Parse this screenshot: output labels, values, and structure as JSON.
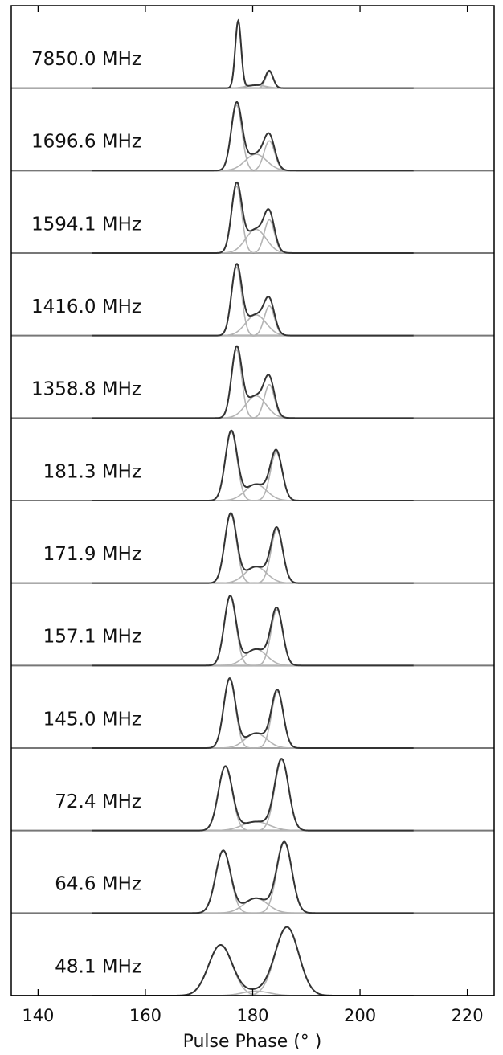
{
  "chart_data": {
    "type": "line",
    "title": "",
    "xlabel": "Pulse Phase (° )",
    "ylabel": "",
    "xlim": [
      135,
      225
    ],
    "xticks": [
      140,
      160,
      180,
      200,
      220
    ],
    "xtick_labels": [
      "140",
      "160",
      "180",
      "200",
      "220"
    ],
    "colors": {
      "total": "#333333",
      "component": "#b4b4b4",
      "frame": "#000000"
    },
    "panels": [
      {
        "label": "7850.0 MHz",
        "components": [
          {
            "center": 177.3,
            "amp": 0.9,
            "sigma": 0.55
          },
          {
            "center": 180.6,
            "amp": 0.04,
            "sigma": 1.8
          },
          {
            "center": 183.1,
            "amp": 0.22,
            "sigma": 0.7
          }
        ]
      },
      {
        "label": "1696.6 MHz",
        "components": [
          {
            "center": 177.0,
            "amp": 0.88,
            "sigma": 1.0
          },
          {
            "center": 180.6,
            "amp": 0.22,
            "sigma": 2.0
          },
          {
            "center": 183.1,
            "amp": 0.4,
            "sigma": 1.0
          }
        ]
      },
      {
        "label": "1594.1 MHz",
        "components": [
          {
            "center": 177.0,
            "amp": 0.9,
            "sigma": 0.95
          },
          {
            "center": 180.6,
            "amp": 0.32,
            "sigma": 1.9
          },
          {
            "center": 183.1,
            "amp": 0.45,
            "sigma": 0.95
          }
        ]
      },
      {
        "label": "1416.0 MHz",
        "components": [
          {
            "center": 177.0,
            "amp": 0.92,
            "sigma": 0.95
          },
          {
            "center": 180.6,
            "amp": 0.28,
            "sigma": 1.9
          },
          {
            "center": 183.1,
            "amp": 0.4,
            "sigma": 0.95
          }
        ]
      },
      {
        "label": "1358.8 MHz",
        "components": [
          {
            "center": 177.0,
            "amp": 0.92,
            "sigma": 0.95
          },
          {
            "center": 180.6,
            "amp": 0.3,
            "sigma": 1.9
          },
          {
            "center": 183.1,
            "amp": 0.45,
            "sigma": 0.95
          }
        ]
      },
      {
        "label": "181.3 MHz",
        "components": [
          {
            "center": 176.0,
            "amp": 0.93,
            "sigma": 1.1
          },
          {
            "center": 180.6,
            "amp": 0.22,
            "sigma": 2.0
          },
          {
            "center": 184.4,
            "amp": 0.65,
            "sigma": 1.1
          }
        ]
      },
      {
        "label": "171.9 MHz",
        "components": [
          {
            "center": 175.9,
            "amp": 0.93,
            "sigma": 1.1
          },
          {
            "center": 180.6,
            "amp": 0.22,
            "sigma": 2.0
          },
          {
            "center": 184.5,
            "amp": 0.72,
            "sigma": 1.1
          }
        ]
      },
      {
        "label": "157.1 MHz",
        "components": [
          {
            "center": 175.8,
            "amp": 0.93,
            "sigma": 1.1
          },
          {
            "center": 180.6,
            "amp": 0.22,
            "sigma": 2.0
          },
          {
            "center": 184.5,
            "amp": 0.75,
            "sigma": 1.1
          }
        ]
      },
      {
        "label": "145.0 MHz",
        "components": [
          {
            "center": 175.7,
            "amp": 0.93,
            "sigma": 1.1
          },
          {
            "center": 180.6,
            "amp": 0.2,
            "sigma": 2.0
          },
          {
            "center": 184.6,
            "amp": 0.76,
            "sigma": 1.1
          }
        ]
      },
      {
        "label": "72.4 MHz",
        "components": [
          {
            "center": 174.9,
            "amp": 0.86,
            "sigma": 1.3
          },
          {
            "center": 180.6,
            "amp": 0.12,
            "sigma": 2.5
          },
          {
            "center": 185.4,
            "amp": 0.95,
            "sigma": 1.3
          }
        ]
      },
      {
        "label": "64.6 MHz",
        "components": [
          {
            "center": 174.5,
            "amp": 0.84,
            "sigma": 1.4
          },
          {
            "center": 180.6,
            "amp": 0.2,
            "sigma": 2.2
          },
          {
            "center": 185.9,
            "amp": 0.95,
            "sigma": 1.4
          }
        ]
      },
      {
        "label": "48.1 MHz",
        "components": [
          {
            "center": 174.0,
            "amp": 0.68,
            "sigma": 2.2
          },
          {
            "center": 180.6,
            "amp": 0.06,
            "sigma": 2.5
          },
          {
            "center": 186.4,
            "amp": 0.92,
            "sigma": 2.2
          }
        ]
      }
    ]
  }
}
